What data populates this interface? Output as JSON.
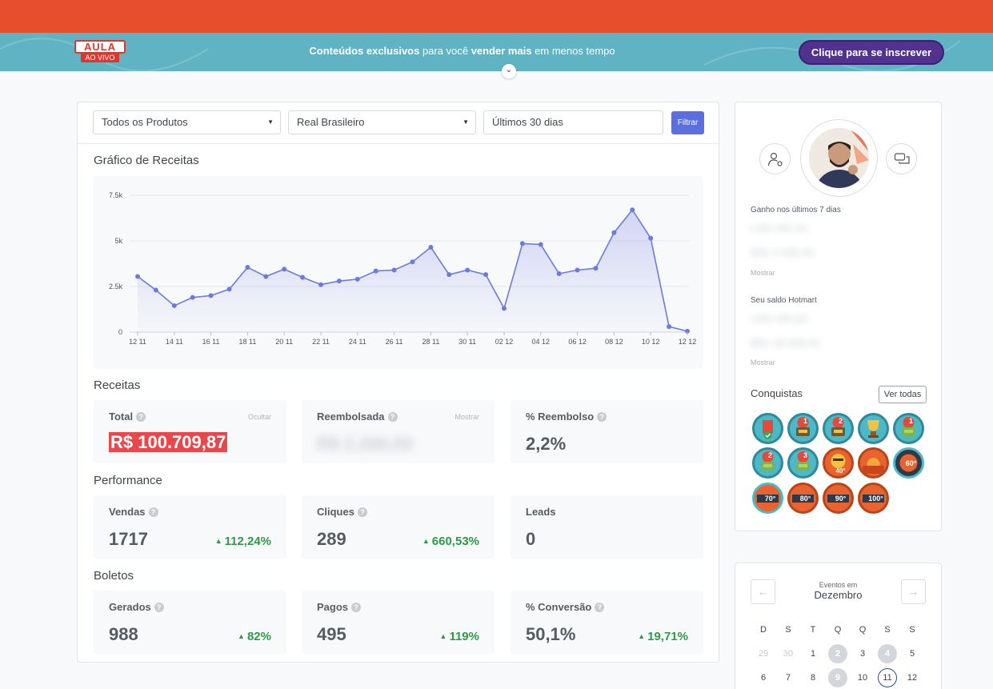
{
  "promo": {
    "logo_top": "AULA",
    "logo_bottom": "AO VIVO",
    "text_bold1": "Conteúdos exclusivos",
    "text_mid1": " para você ",
    "text_bold2": "vender mais",
    "text_mid2": " em menos tempo",
    "cta": "Clique para se inscrever",
    "bar_color": "#e74e2e",
    "band_color": "#5fb3c2",
    "cta_color": "#51338f"
  },
  "filters": {
    "product": "Todos os Produtos",
    "currency": "Real Brasileiro",
    "period": "Últimos 30 dias",
    "button": "Filtrar"
  },
  "chart_title": "Gráfico de Receitas",
  "chart_data": {
    "type": "area",
    "title": "",
    "xlabel": "",
    "ylabel": "",
    "ylim": [
      0,
      7500
    ],
    "yticks": [
      "0",
      "2.5k",
      "5k",
      "7.5k"
    ],
    "ytick_values": [
      0,
      2500,
      5000,
      7500
    ],
    "x_tick_labels": [
      "12 11",
      "14 11",
      "16 11",
      "18 11",
      "20 11",
      "22 11",
      "24 11",
      "26 11",
      "28 11",
      "30 11",
      "02 12",
      "04 12",
      "06 12",
      "08 12",
      "10 12",
      "12 12"
    ],
    "grid": true,
    "color": "#6c7ae0",
    "series": [
      {
        "values": [
          3050,
          2300,
          1450,
          1900,
          2000,
          2350,
          3550,
          3050,
          3450,
          3000,
          2600,
          2800,
          2900,
          3350,
          3400,
          3850,
          4650,
          3150,
          3400,
          3150,
          1300,
          4850,
          4800,
          3200,
          3400,
          3500,
          5450,
          6700,
          5150,
          300,
          50
        ]
      }
    ]
  },
  "receitas": {
    "title": "Receitas",
    "total_label": "Total",
    "total_toggle": "Ocultar",
    "total_value": "R$ 100.709,87",
    "reembolsada_label": "Reembolsada",
    "reembolsada_toggle": "Mostrar",
    "reembolsada_value": "R$ 2.200,00",
    "pct_label": "% Reembolso",
    "pct_value": "2,2%"
  },
  "performance": {
    "title": "Performance",
    "vendas_label": "Vendas",
    "vendas_value": "1717",
    "vendas_delta": "112,24%",
    "cliques_label": "Cliques",
    "cliques_value": "289",
    "cliques_delta": "660,53%",
    "leads_label": "Leads",
    "leads_value": "0"
  },
  "boletos": {
    "title": "Boletos",
    "gerados_label": "Gerados",
    "gerados_value": "988",
    "gerados_delta": "82%",
    "pagos_label": "Pagos",
    "pagos_value": "495",
    "pagos_delta": "119%",
    "conv_label": "% Conversão",
    "conv_value": "50,1%",
    "conv_delta": "19,71%"
  },
  "sidebar": {
    "ganho_label": "Ganho nos últimos 7 dias",
    "ganho_line1": "USD 000,00",
    "ganho_line2": "BRL 0.000,00",
    "ganho_toggle": "Mostrar",
    "saldo_label": "Seu saldo Hotmart",
    "saldo_line1": "USD 000,00",
    "saldo_line2": "BRL 00.000,00",
    "saldo_toggle": "Mostrar",
    "conquistas": "Conquistas",
    "ver_todas": "Ver todas",
    "badges": [
      "1",
      "2",
      "1",
      "2",
      "3",
      "40°",
      "60°",
      "70°",
      "80°",
      "90°",
      "100°"
    ]
  },
  "calendar": {
    "small": "Eventos em",
    "month": "Dezembro",
    "prev": "←",
    "next": "→",
    "dow": [
      "D",
      "S",
      "T",
      "Q",
      "Q",
      "S",
      "S"
    ],
    "row1": [
      "29",
      "30",
      "1",
      "2",
      "3",
      "4",
      "5"
    ],
    "row2": [
      "6",
      "7",
      "8",
      "9",
      "10",
      "11",
      "12"
    ]
  }
}
